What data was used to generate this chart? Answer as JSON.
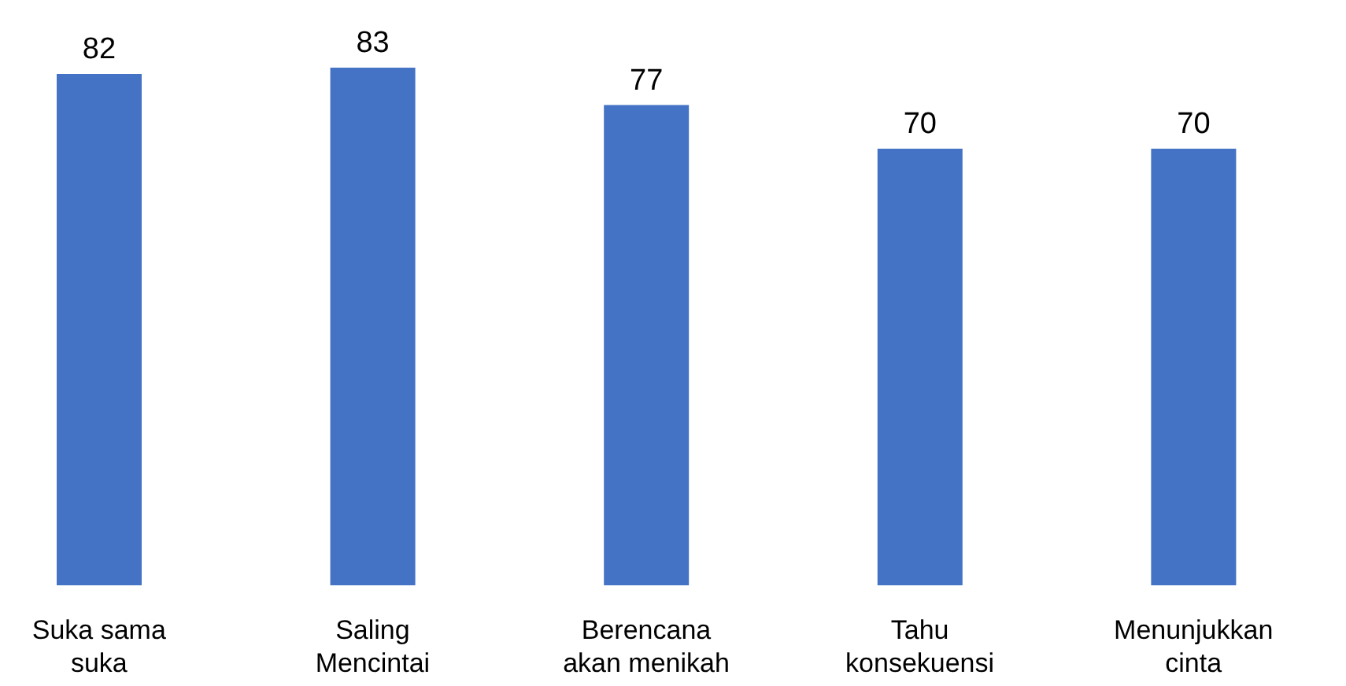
{
  "chart_data": {
    "type": "bar",
    "categories": [
      "Suka sama suka",
      "Saling Mencintai",
      "Berencana akan menikah",
      "Tahu konsekuensi",
      "Menunjukkan cinta"
    ],
    "values": [
      82,
      83,
      77,
      70,
      70
    ],
    "color": "#4472c4",
    "data_labels": true
  }
}
